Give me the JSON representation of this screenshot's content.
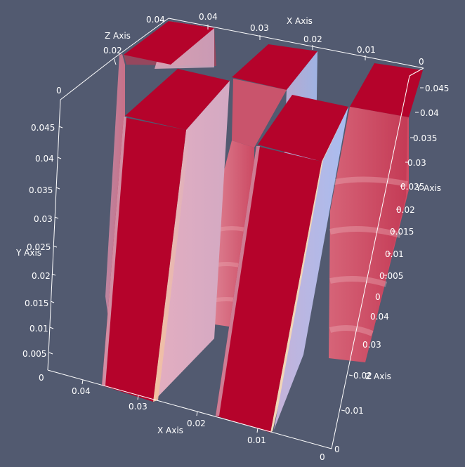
{
  "scene": {
    "background": "#525a70",
    "colors": {
      "field_high": "#b5032b",
      "field_low": "#a9c0f0",
      "side_light": "#d8a8bd",
      "axis": "#ffffff"
    }
  },
  "axes": {
    "x_axis_label": "X Axis",
    "y_axis_label": "Y Axis",
    "z_axis_label": "Z Axis",
    "top_x_ticks": [
      "0.04",
      "0.03",
      "0.02",
      "0.01",
      "0"
    ],
    "top_z_ticks": [
      "0.04",
      "0.02",
      "0"
    ],
    "left_y_ticks": [
      "0.045",
      "0.04",
      "0.035",
      "0.03",
      "0.025",
      "0.02",
      "0.015",
      "0.01",
      "0.005",
      "0"
    ],
    "bottom_x_ticks": [
      "0.04",
      "0.03",
      "0.02",
      "0.01",
      "0"
    ],
    "right_y_ticks": [
      "0.045",
      "0.04",
      "0.035",
      "0.03",
      "0.025",
      "0.02",
      "0.015",
      "0.01",
      "0.005",
      "0"
    ],
    "right_z_ticks": [
      "0.04",
      "0.03",
      "0.02",
      "0.01",
      "0"
    ]
  }
}
